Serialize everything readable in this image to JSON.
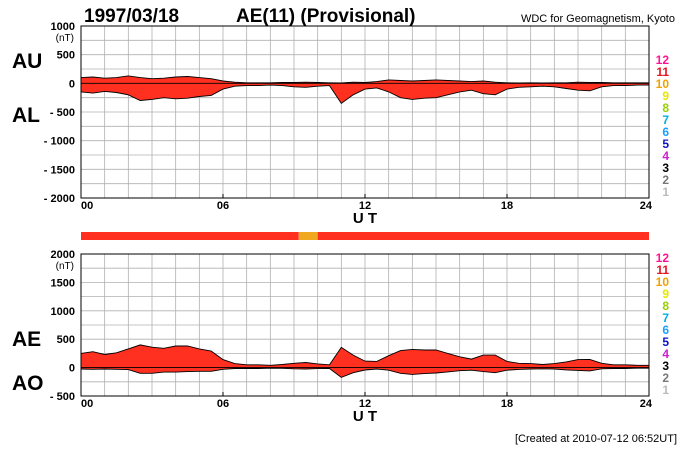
{
  "header": {
    "date": "1997/03/18",
    "title": "AE(11) (Provisional)",
    "source": "WDC for Geomagnetism, Kyoto"
  },
  "footer": "[Created at 2010-07-12 06:52UT]",
  "legend": {
    "labels": [
      "12",
      "11",
      "10",
      "9",
      "8",
      "7",
      "6",
      "5",
      "4",
      "3",
      "2",
      "1"
    ],
    "colors": [
      "#ff1493",
      "#e8141e",
      "#f0a000",
      "#e6e600",
      "#9ad000",
      "#00b0e0",
      "#1ca0ff",
      "#1010d0",
      "#d020d0",
      "#000000",
      "#777777",
      "#bbbbbb"
    ]
  },
  "colors": {
    "fill": "#ff3020",
    "partial": "#f0a820"
  },
  "stations_bar": [
    {
      "start": 0,
      "end": 9.2,
      "stations": 11
    },
    {
      "start": 9.2,
      "end": 10.0,
      "stations": 10
    },
    {
      "start": 10.0,
      "end": 24,
      "stations": 11
    }
  ],
  "chart_data": [
    {
      "type": "area",
      "labels": [
        "AU",
        "AL"
      ],
      "unit": "(nT)",
      "xlabel": "U T",
      "xticks": [
        "00",
        "06",
        "12",
        "18",
        "24"
      ],
      "xlim": [
        0,
        24
      ],
      "ylim": [
        -2000,
        1000
      ],
      "yticks": [
        1000,
        500,
        0,
        -500,
        -1000,
        -1500,
        -2000
      ],
      "ytick_labels": [
        "1000",
        "500",
        "0",
        "- 500",
        "- 1000",
        "- 1500",
        "- 2000"
      ],
      "grid": true,
      "x": [
        0,
        0.5,
        1,
        1.5,
        2,
        2.5,
        3,
        3.5,
        4,
        4.5,
        5,
        5.5,
        6,
        6.5,
        7,
        7.5,
        8,
        8.5,
        9,
        9.5,
        10,
        10.5,
        11,
        11.5,
        12,
        12.5,
        13,
        13.5,
        14,
        14.5,
        15,
        15.5,
        16,
        16.5,
        17,
        17.5,
        18,
        18.5,
        19,
        19.5,
        20,
        20.5,
        21,
        21.5,
        22,
        22.5,
        23,
        23.5,
        24
      ],
      "series": [
        {
          "name": "AU",
          "values": [
            100,
            110,
            90,
            100,
            130,
            100,
            80,
            90,
            110,
            120,
            100,
            80,
            40,
            20,
            10,
            10,
            10,
            15,
            15,
            20,
            15,
            10,
            5,
            20,
            15,
            30,
            60,
            50,
            40,
            50,
            60,
            50,
            40,
            30,
            40,
            20,
            10,
            5,
            10,
            5,
            10,
            10,
            20,
            15,
            15,
            10,
            10,
            10,
            10
          ]
        },
        {
          "name": "AL",
          "values": [
            -150,
            -170,
            -140,
            -160,
            -200,
            -300,
            -280,
            -250,
            -270,
            -260,
            -230,
            -210,
            -100,
            -50,
            -40,
            -40,
            -30,
            -40,
            -60,
            -70,
            -50,
            -40,
            -350,
            -200,
            -100,
            -80,
            -150,
            -250,
            -280,
            -260,
            -250,
            -200,
            -150,
            -120,
            -180,
            -200,
            -100,
            -70,
            -60,
            -50,
            -60,
            -90,
            -120,
            -130,
            -60,
            -40,
            -40,
            -30,
            -30
          ]
        }
      ]
    },
    {
      "type": "area",
      "labels": [
        "AE",
        "AO"
      ],
      "unit": "(nT)",
      "xlabel": "U T",
      "xticks": [
        "00",
        "06",
        "12",
        "18",
        "24"
      ],
      "xlim": [
        0,
        24
      ],
      "ylim": [
        -500,
        2000
      ],
      "yticks": [
        2000,
        1500,
        1000,
        500,
        0,
        -500
      ],
      "ytick_labels": [
        "2000",
        "1500",
        "1000",
        "500",
        "0",
        "- 500"
      ],
      "grid": true,
      "x": [
        0,
        0.5,
        1,
        1.5,
        2,
        2.5,
        3,
        3.5,
        4,
        4.5,
        5,
        5.5,
        6,
        6.5,
        7,
        7.5,
        8,
        8.5,
        9,
        9.5,
        10,
        10.5,
        11,
        11.5,
        12,
        12.5,
        13,
        13.5,
        14,
        14.5,
        15,
        15.5,
        16,
        16.5,
        17,
        17.5,
        18,
        18.5,
        19,
        19.5,
        20,
        20.5,
        21,
        21.5,
        22,
        22.5,
        23,
        23.5,
        24
      ],
      "series": [
        {
          "name": "AE",
          "values": [
            250,
            280,
            230,
            260,
            330,
            400,
            360,
            340,
            380,
            380,
            330,
            290,
            140,
            70,
            50,
            50,
            40,
            55,
            75,
            90,
            65,
            50,
            355,
            220,
            115,
            110,
            210,
            300,
            320,
            310,
            310,
            250,
            190,
            150,
            220,
            220,
            110,
            75,
            70,
            55,
            70,
            100,
            140,
            145,
            75,
            50,
            50,
            40,
            40
          ]
        },
        {
          "name": "AO",
          "values": [
            -25,
            -30,
            -25,
            -30,
            -35,
            -100,
            -100,
            -80,
            -80,
            -70,
            -65,
            -65,
            -30,
            -15,
            -15,
            -15,
            -10,
            -12,
            -22,
            -25,
            -18,
            -15,
            -172,
            -90,
            -42,
            -25,
            -45,
            -100,
            -120,
            -105,
            -95,
            -75,
            -55,
            -45,
            -70,
            -90,
            -45,
            -32,
            -25,
            -22,
            -25,
            -40,
            -50,
            -58,
            -22,
            -15,
            -15,
            -10,
            -10
          ]
        }
      ]
    }
  ]
}
